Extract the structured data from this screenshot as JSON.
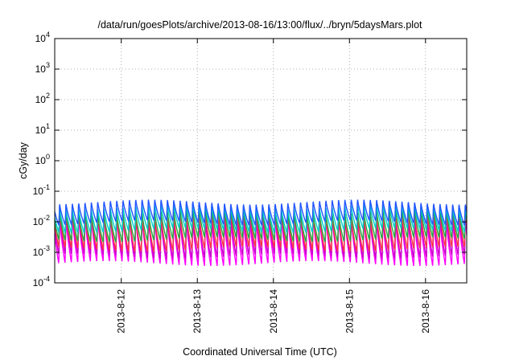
{
  "chart_data": {
    "type": "line",
    "title": "/data/run/goesPlots/archive/2013-08-16/13:00/flux/../bryn/5daysMars.plot",
    "xlabel": "Coordinated Universal Time (UTC)",
    "ylabel": "cGy/day",
    "y_scale": "log",
    "ylim": [
      0.0001,
      10000
    ],
    "y_ticks": [
      {
        "base": "10",
        "exp": "-4",
        "value": 0.0001
      },
      {
        "base": "10",
        "exp": "-3",
        "value": 0.001
      },
      {
        "base": "10",
        "exp": "-2",
        "value": 0.01
      },
      {
        "base": "10",
        "exp": "-1",
        "value": 0.1
      },
      {
        "base": "10",
        "exp": "0",
        "value": 1
      },
      {
        "base": "10",
        "exp": "1",
        "value": 10
      },
      {
        "base": "10",
        "exp": "2",
        "value": 100
      },
      {
        "base": "10",
        "exp": "3",
        "value": 1000
      },
      {
        "base": "10",
        "exp": "4",
        "value": 10000
      }
    ],
    "xlim": [
      "2013-08-11T03:00",
      "2013-08-16T13:00"
    ],
    "x_ticks": [
      "2013-8-12",
      "2013-8-13",
      "2013-8-14",
      "2013-8-15",
      "2013-8-16"
    ],
    "grid": true,
    "cycles_per_day": 12,
    "series": [
      {
        "color": "#ff00ff",
        "peak": 0.016,
        "trough": 0.0004
      },
      {
        "color": "#cc00cc",
        "peak": 0.018,
        "trough": 0.0007
      },
      {
        "color": "#ff3344",
        "peak": 0.022,
        "trough": 0.0012
      },
      {
        "color": "#22aa44",
        "peak": 0.025,
        "trough": 0.0025
      },
      {
        "color": "#00cccc",
        "peak": 0.035,
        "trough": 0.005
      },
      {
        "color": "#2255ff",
        "peak": 0.05,
        "trough": 0.009
      }
    ]
  }
}
